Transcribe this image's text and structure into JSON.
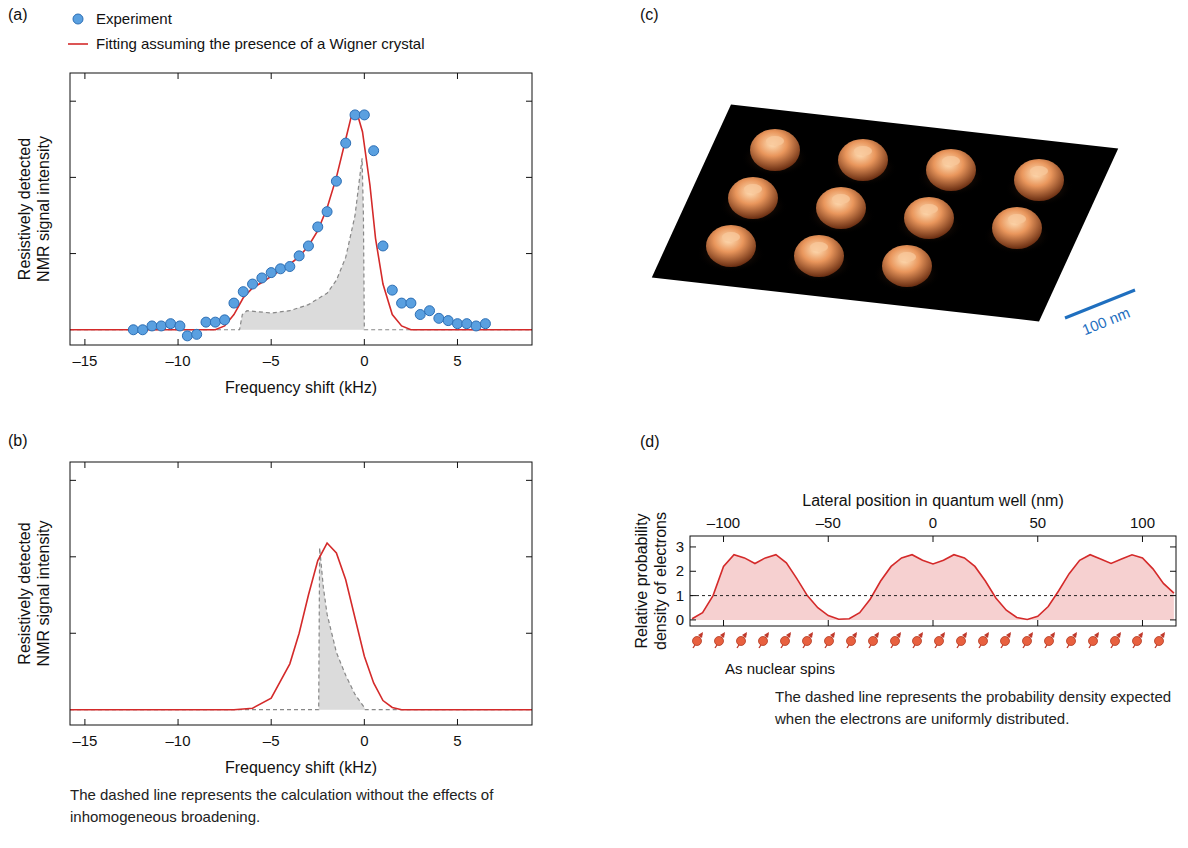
{
  "chart_data": [
    {
      "panel": "(a)",
      "type": "line",
      "xlabel": "Frequency shift (kHz)",
      "ylabel": "Resistively detected NMR signal intensity",
      "xlim": [
        -15.8,
        9.0
      ],
      "xticks": [
        {
          "value": -15,
          "label": "–15"
        },
        {
          "value": -10,
          "label": "–10"
        },
        {
          "value": -5,
          "label": "–5"
        },
        0,
        5
      ],
      "ylim": [
        -0.2,
        3.37
      ],
      "yticks": [
        1,
        2,
        3
      ],
      "tick_labels": "x",
      "legend": "top-left",
      "series": [
        {
          "name": "Experiment",
          "type": "scatter",
          "marker": "circle",
          "color": "#5aa0e0",
          "x": [
            -12.4,
            -11.9,
            -11.4,
            -10.9,
            -10.4,
            -9.9,
            -9.5,
            -9.0,
            -8.5,
            -8.0,
            -7.5,
            -7.0,
            -6.5,
            -6.0,
            -5.5,
            -5.0,
            -4.5,
            -4.0,
            -3.5,
            -3.0,
            -2.5,
            -2.0,
            -1.5,
            -1.0,
            -0.5,
            0.0,
            0.5,
            1.0,
            1.5,
            2.0,
            2.5,
            3.0,
            3.5,
            4.0,
            4.5,
            5.0,
            5.5,
            6.0,
            6.5
          ],
          "values": [
            0.0,
            0.0,
            0.05,
            0.05,
            0.08,
            0.05,
            -0.08,
            -0.06,
            0.1,
            0.1,
            0.13,
            0.35,
            0.5,
            0.6,
            0.68,
            0.75,
            0.8,
            0.83,
            0.97,
            1.1,
            1.35,
            1.55,
            1.95,
            2.45,
            2.82,
            2.82,
            2.35,
            1.1,
            0.52,
            0.35,
            0.35,
            0.2,
            0.25,
            0.15,
            0.12,
            0.08,
            0.08,
            0.05,
            0.08
          ]
        },
        {
          "name": "Fitting assuming the presence of a Wigner crystal",
          "type": "line",
          "color": "#d42a2a",
          "x": [
            -15.8,
            -8.0,
            -7.5,
            -7.0,
            -6.5,
            -6.0,
            -5.5,
            -5.0,
            -4.5,
            -4.0,
            -3.5,
            -3.0,
            -2.5,
            -2.0,
            -1.5,
            -1.0,
            -0.7,
            -0.4,
            -0.1,
            0.3,
            0.6,
            1.0,
            1.5,
            2.0,
            2.5,
            9.0
          ],
          "values": [
            0,
            0,
            0.05,
            0.2,
            0.42,
            0.55,
            0.62,
            0.7,
            0.78,
            0.86,
            0.96,
            1.1,
            1.3,
            1.6,
            2.0,
            2.5,
            2.8,
            2.85,
            2.6,
            1.9,
            1.2,
            0.6,
            0.2,
            0.05,
            0,
            0
          ]
        },
        {
          "type": "area",
          "line_style": "dashed",
          "color": "#888888",
          "x": [
            -15.8,
            -6.7,
            -6.55,
            -6.3,
            -5.0,
            -4.0,
            -3.0,
            -2.0,
            -1.5,
            -1.0,
            -0.5,
            -0.25,
            -0.12,
            -0.05,
            0.0,
            9.0
          ],
          "values": [
            0,
            0,
            0.2,
            0.25,
            0.22,
            0.25,
            0.33,
            0.48,
            0.65,
            0.95,
            1.5,
            2.0,
            2.25,
            1.5,
            0,
            0
          ]
        }
      ]
    },
    {
      "panel": "(b)",
      "type": "line",
      "xlabel": "Frequency shift (kHz)",
      "ylabel": "Resistively detected NMR signal intensity",
      "caption": "The dashed line represents the calculation without the effects of inhomogeneous broadening.",
      "xlim": [
        -15.8,
        9.0
      ],
      "xticks": [
        {
          "value": -15,
          "label": "–15"
        },
        {
          "value": -10,
          "label": "–10"
        },
        {
          "value": -5,
          "label": "–5"
        },
        0,
        5
      ],
      "ylim": [
        -0.2,
        3.24
      ],
      "yticks": [
        1,
        2,
        3
      ],
      "tick_labels": "x",
      "series": [
        {
          "type": "area",
          "line_style": "dashed",
          "color": "#888888",
          "x": [
            -15.8,
            -2.45,
            -2.4,
            -2.2,
            -2.0,
            -1.5,
            -1.0,
            -0.5,
            0.0,
            0.05,
            9.0
          ],
          "values": [
            0,
            0,
            2.12,
            1.6,
            1.25,
            0.75,
            0.45,
            0.2,
            0.03,
            0,
            0
          ]
        },
        {
          "type": "line",
          "color": "#d42a2a",
          "x": [
            -15.8,
            -7.0,
            -6.0,
            -5.0,
            -4.0,
            -3.5,
            -3.0,
            -2.5,
            -2.0,
            -1.5,
            -1.0,
            -0.5,
            0.0,
            0.5,
            1.0,
            1.5,
            2.0,
            9.0
          ],
          "values": [
            0,
            0,
            0.02,
            0.15,
            0.6,
            1.0,
            1.5,
            1.95,
            2.18,
            2.05,
            1.7,
            1.2,
            0.7,
            0.35,
            0.12,
            0.03,
            0,
            0
          ]
        }
      ]
    },
    {
      "panel": "(c)",
      "type": "image",
      "scale_bar": "100 nm"
    },
    {
      "panel": "(d)",
      "type": "area",
      "xlabel": "Lateral position in quantum well (nm)",
      "ylabel": "Relative probability density of electrons",
      "annotation": "As nuclear spins",
      "caption": "The dashed line represents the probability density expected when the electrons are uniformly distributed.",
      "xlim": [
        -116,
        116
      ],
      "xticks": [
        {
          "value": -100,
          "label": "–100"
        },
        {
          "value": -50,
          "label": "–50"
        },
        0,
        50,
        100
      ],
      "ylim": [
        -0.25,
        3.45
      ],
      "yticks": [
        0,
        1,
        2,
        3
      ],
      "reference_line": {
        "value": 1,
        "line_style": "dashed"
      },
      "series": [
        {
          "type": "area",
          "color": "#d42a2a",
          "x": [
            -115,
            -110,
            -105,
            -100,
            -95,
            -90,
            -85,
            -80,
            -75,
            -70,
            -65,
            -60,
            -55,
            -50,
            -45,
            -40,
            -35,
            -30,
            -25,
            -20,
            -15,
            -10,
            -5,
            0,
            5,
            10,
            15,
            20,
            25,
            30,
            35,
            40,
            45,
            50,
            55,
            60,
            65,
            70,
            75,
            80,
            85,
            90,
            95,
            100,
            105,
            110,
            115
          ],
          "values": [
            0.05,
            0.3,
            1.0,
            2.2,
            2.68,
            2.55,
            2.32,
            2.55,
            2.68,
            2.35,
            1.7,
            1.0,
            0.5,
            0.18,
            0.03,
            0.05,
            0.3,
            0.85,
            1.6,
            2.2,
            2.55,
            2.68,
            2.45,
            2.3,
            2.45,
            2.68,
            2.55,
            2.2,
            1.6,
            0.9,
            0.4,
            0.1,
            0.02,
            0.15,
            0.55,
            1.2,
            1.9,
            2.45,
            2.68,
            2.5,
            2.32,
            2.5,
            2.68,
            2.55,
            2.1,
            1.5,
            1.1
          ]
        }
      ]
    }
  ]
}
